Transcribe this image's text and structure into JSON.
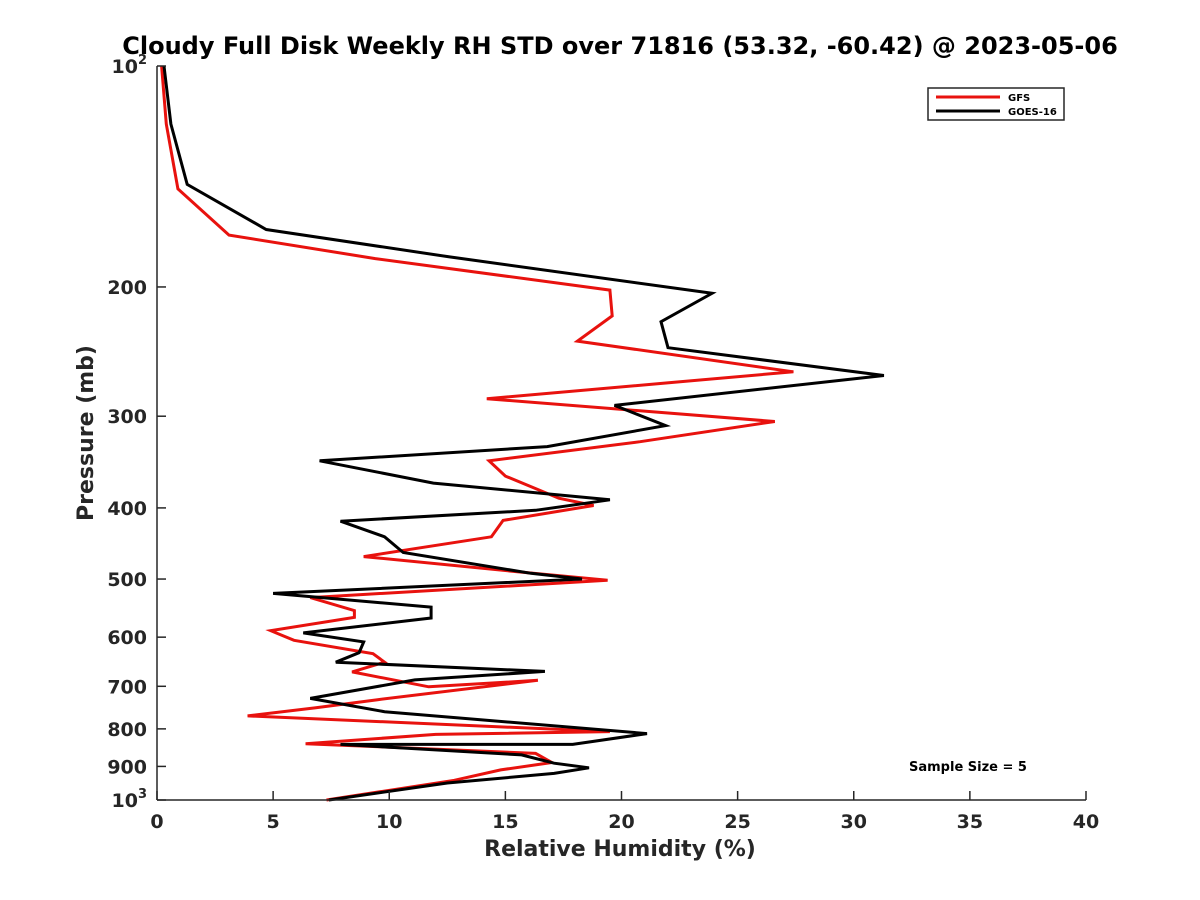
{
  "chart_data": {
    "type": "line",
    "title": "Cloudy Full Disk Weekly RH STD over 71816 (53.32, -60.42) @ 2023-05-06",
    "xlabel": "Relative Humidity (%)",
    "ylabel": "Pressure (mb)",
    "xlim": [
      0,
      40
    ],
    "ylim": [
      100,
      1000
    ],
    "y_scale": "log",
    "y_reversed": true,
    "grid": false,
    "legend_position": "top-right",
    "x_ticks": [
      0,
      5,
      10,
      15,
      20,
      25,
      30,
      35,
      40
    ],
    "y_ticks": [
      100,
      200,
      300,
      400,
      500,
      600,
      700,
      800,
      900,
      1000
    ],
    "y_tick_labels": {
      "100": {
        "base": "10",
        "exp": "2"
      },
      "200": "200",
      "300": "300",
      "400": "400",
      "500": "500",
      "600": "600",
      "700": "700",
      "800": "800",
      "900": "900",
      "1000": {
        "base": "10",
        "exp": "3"
      }
    },
    "annotation": "Sample Size = 5",
    "series": [
      {
        "name": "GFS",
        "color": "#e8120e",
        "x": [
          0.2,
          0.4,
          0.9,
          3.1,
          9.4,
          19.5,
          19.6,
          18.1,
          27.4,
          14.2,
          26.6,
          20.8,
          14.3,
          15.0,
          17.3,
          18.8,
          14.9,
          14.4,
          8.9,
          16.2,
          19.4,
          6.6,
          8.5,
          8.5,
          4.9,
          5.9,
          9.3,
          9.8,
          8.4,
          11.7,
          16.4,
          9.5,
          6.8,
          3.9,
          19.5,
          12.0,
          6.4,
          16.3,
          17.0,
          14.8,
          12.8,
          7.3
        ],
        "y": [
          100,
          120,
          147,
          170,
          183,
          202,
          219,
          237,
          261,
          284,
          305,
          325,
          345,
          362,
          388,
          397,
          416,
          438,
          466,
          491,
          502,
          530,
          552,
          564,
          588,
          606,
          632,
          649,
          669,
          701,
          687,
          730,
          749,
          768,
          807,
          814,
          838,
          864,
          889,
          910,
          940,
          1000
        ]
      },
      {
        "name": "GOES-16",
        "color": "#000000",
        "x": [
          0.3,
          0.6,
          1.3,
          4.7,
          12.6,
          23.9,
          21.7,
          22.0,
          31.3,
          19.7,
          21.9,
          16.8,
          7.0,
          11.9,
          19.5,
          16.3,
          7.9,
          9.8,
          10.6,
          16.1,
          18.3,
          5.0,
          11.8,
          11.8,
          6.3,
          8.9,
          8.7,
          7.7,
          16.7,
          11.1,
          6.6,
          9.8,
          21.1,
          17.9,
          7.9,
          15.7,
          17.1,
          18.6,
          17.1,
          12.5,
          7.4
        ],
        "y": [
          100,
          120,
          145,
          167,
          182,
          204,
          223,
          242,
          264,
          290,
          309,
          330,
          345,
          370,
          390,
          403,
          417,
          438,
          460,
          491,
          500,
          523,
          546,
          565,
          592,
          609,
          630,
          649,
          668,
          686,
          727,
          758,
          812,
          840,
          840,
          868,
          891,
          904,
          920,
          948,
          1000
        ]
      }
    ]
  }
}
